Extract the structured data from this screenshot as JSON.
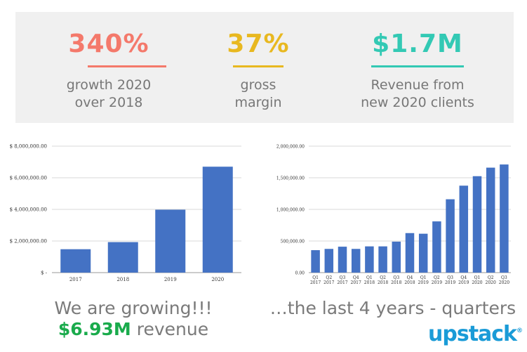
{
  "stats": [
    {
      "value": "340%",
      "line1": "growth 2020",
      "line2": "over 2018",
      "color": "#f4796b"
    },
    {
      "value": "37%",
      "line1": "gross",
      "line2": "margin",
      "color": "#e8b820"
    },
    {
      "value": "$1.7M",
      "line1": "Revenue from",
      "line2": "new 2020 clients",
      "color": "#33c9b4"
    }
  ],
  "chart_data": [
    {
      "type": "bar",
      "categories": [
        "2017",
        "2018",
        "2019",
        "2020"
      ],
      "values": [
        1480000,
        1930000,
        3980000,
        6700000
      ],
      "ylim": [
        0,
        8000000
      ],
      "yticks": [
        0,
        2000000,
        4000000,
        6000000,
        8000000
      ],
      "ytick_labels": [
        "$ -",
        "$ 2,000,000.00",
        "$ 4,000,000.00",
        "$ 6,000,000.00",
        "$ 8,000,000.00"
      ],
      "grid": true,
      "bar_color": "#4472c4"
    },
    {
      "type": "bar",
      "categories": [
        [
          "Q1",
          "2017"
        ],
        [
          "Q2",
          "2017"
        ],
        [
          "Q3",
          "2017"
        ],
        [
          "Q4",
          "2017"
        ],
        [
          "Q1",
          "2018"
        ],
        [
          "Q2",
          "2018"
        ],
        [
          "Q3",
          "2018"
        ],
        [
          "Q4",
          "2018"
        ],
        [
          "Q1",
          "2019"
        ],
        [
          "Q2",
          "2019"
        ],
        [
          "Q3",
          "2019"
        ],
        [
          "Q4",
          "2019"
        ],
        [
          "Q1",
          "2020"
        ],
        [
          "Q2",
          "2020"
        ],
        [
          "Q3",
          "2020"
        ]
      ],
      "values": [
        355000,
        375000,
        410000,
        375000,
        415000,
        415000,
        490000,
        625000,
        615000,
        810000,
        1160000,
        1375000,
        1525000,
        1660000,
        1710000
      ],
      "ylim": [
        0,
        2000000
      ],
      "yticks": [
        0,
        500000,
        1000000,
        1500000,
        2000000
      ],
      "ytick_labels": [
        "0.00",
        "500,000.00",
        "1,000,000.00",
        "1,500,000.00",
        "2,000,000.00"
      ],
      "grid": true,
      "bar_color": "#4472c4"
    }
  ],
  "caption_left": {
    "line1": "We are growing!!!",
    "amount": "$6.93M",
    "suffix": " revenue"
  },
  "caption_right": "…the last 4 years - quarters",
  "logo": {
    "text": "upstack",
    "mark": "®",
    "color": "#1a9bd7"
  }
}
